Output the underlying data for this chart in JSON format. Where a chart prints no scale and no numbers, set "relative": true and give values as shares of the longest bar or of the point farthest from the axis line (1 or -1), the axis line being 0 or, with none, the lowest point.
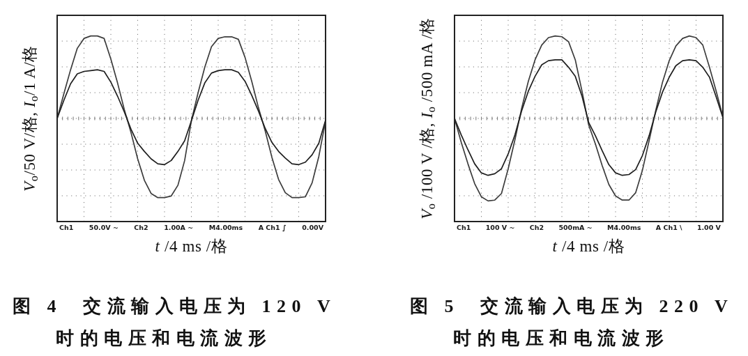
{
  "chart_data": [
    {
      "type": "line",
      "title": "图 4  交流输入电压为 120 V 时的电压和电流波形",
      "xlabel": "*t* /4 ms /格",
      "ylabel": "*V*$_{o}$/50 V/格, *I*$_{o}$/1 A/格",
      "relative": true,
      "grid": true,
      "categories": [
        null,
        null,
        null,
        null,
        null,
        null,
        null,
        null,
        null,
        null,
        null,
        null,
        null,
        null,
        null,
        null,
        null,
        null,
        null,
        null,
        null,
        null,
        null,
        null,
        null,
        null,
        null,
        null,
        null,
        null,
        null,
        null,
        null,
        null,
        null,
        null,
        null,
        null,
        null,
        null,
        null
      ],
      "series": [
        {
          "color": "#3c3c3c",
          "values": [
            0,
            0.3,
            0.59,
            0.85,
            0.97,
            1.0,
            1.0,
            0.97,
            0.72,
            0.43,
            0.11,
            -0.17,
            -0.49,
            -0.75,
            -0.91,
            -0.96,
            -0.96,
            -0.94,
            -0.81,
            -0.51,
            -0.03,
            0.31,
            0.62,
            0.87,
            0.97,
            0.99,
            0.99,
            0.96,
            0.74,
            0.45,
            0.13,
            -0.15,
            -0.47,
            -0.74,
            -0.9,
            -0.96,
            -0.96,
            -0.95,
            -0.78,
            -0.46,
            -0.03
          ]
        },
        {
          "color": "#1e1e1e",
          "values": [
            0,
            0.22,
            0.42,
            0.54,
            0.57,
            0.58,
            0.59,
            0.57,
            0.44,
            0.27,
            0.08,
            -0.13,
            -0.3,
            -0.4,
            -0.49,
            -0.55,
            -0.56,
            -0.51,
            -0.4,
            -0.27,
            -0.03,
            0.22,
            0.43,
            0.55,
            0.58,
            0.59,
            0.59,
            0.56,
            0.45,
            0.28,
            0.09,
            -0.12,
            -0.29,
            -0.4,
            -0.48,
            -0.55,
            -0.56,
            -0.53,
            -0.44,
            -0.3,
            -0.02
          ]
        }
      ],
      "annotations": [
        "Ch1",
        "50.0V ~",
        "Ch2",
        "1.00A ~",
        "M4.00ms",
        "A Ch1 ∫",
        "0.00V"
      ]
    },
    {
      "type": "line",
      "title": "图 5  交流输入电压为 220 V 时的电压和电流波形",
      "xlabel": "*t* /4 ms /格",
      "ylabel": "*V*$_{o}$ /100 V /格, *I*$_{o}$ /500 mA /格",
      "relative": true,
      "grid": true,
      "categories": [
        null,
        null,
        null,
        null,
        null,
        null,
        null,
        null,
        null,
        null,
        null,
        null,
        null,
        null,
        null,
        null,
        null,
        null,
        null,
        null,
        null,
        null,
        null,
        null,
        null,
        null,
        null,
        null,
        null,
        null,
        null,
        null,
        null,
        null,
        null,
        null,
        null,
        null,
        null,
        null,
        null
      ],
      "series": [
        {
          "color": "#3c3c3c",
          "values": [
            0,
            -0.29,
            -0.55,
            -0.79,
            -0.95,
            -1.0,
            -0.99,
            -0.91,
            -0.61,
            -0.26,
            0.12,
            0.45,
            0.71,
            0.89,
            0.98,
            1.0,
            0.99,
            0.93,
            0.71,
            0.33,
            -0.08,
            -0.31,
            -0.57,
            -0.8,
            -0.94,
            -0.99,
            -0.99,
            -0.9,
            -0.63,
            -0.27,
            0.1,
            0.44,
            0.7,
            0.88,
            0.97,
            1.0,
            0.98,
            0.89,
            0.62,
            0.33,
            0.02
          ]
        },
        {
          "color": "#1e1e1e",
          "values": [
            0,
            -0.2,
            -0.38,
            -0.55,
            -0.66,
            -0.69,
            -0.67,
            -0.61,
            -0.43,
            -0.2,
            0.09,
            0.33,
            0.51,
            0.65,
            0.7,
            0.71,
            0.71,
            0.62,
            0.51,
            0.27,
            -0.05,
            -0.21,
            -0.39,
            -0.56,
            -0.66,
            -0.69,
            -0.68,
            -0.62,
            -0.45,
            -0.21,
            0.08,
            0.32,
            0.5,
            0.64,
            0.7,
            0.71,
            0.7,
            0.62,
            0.5,
            0.26,
            0.01
          ]
        }
      ],
      "annotations": [
        "Ch1",
        "100 V ~",
        "Ch2",
        "500mA ~",
        "M4.00ms",
        "A Ch1 \\",
        "1.00 V"
      ]
    }
  ]
}
